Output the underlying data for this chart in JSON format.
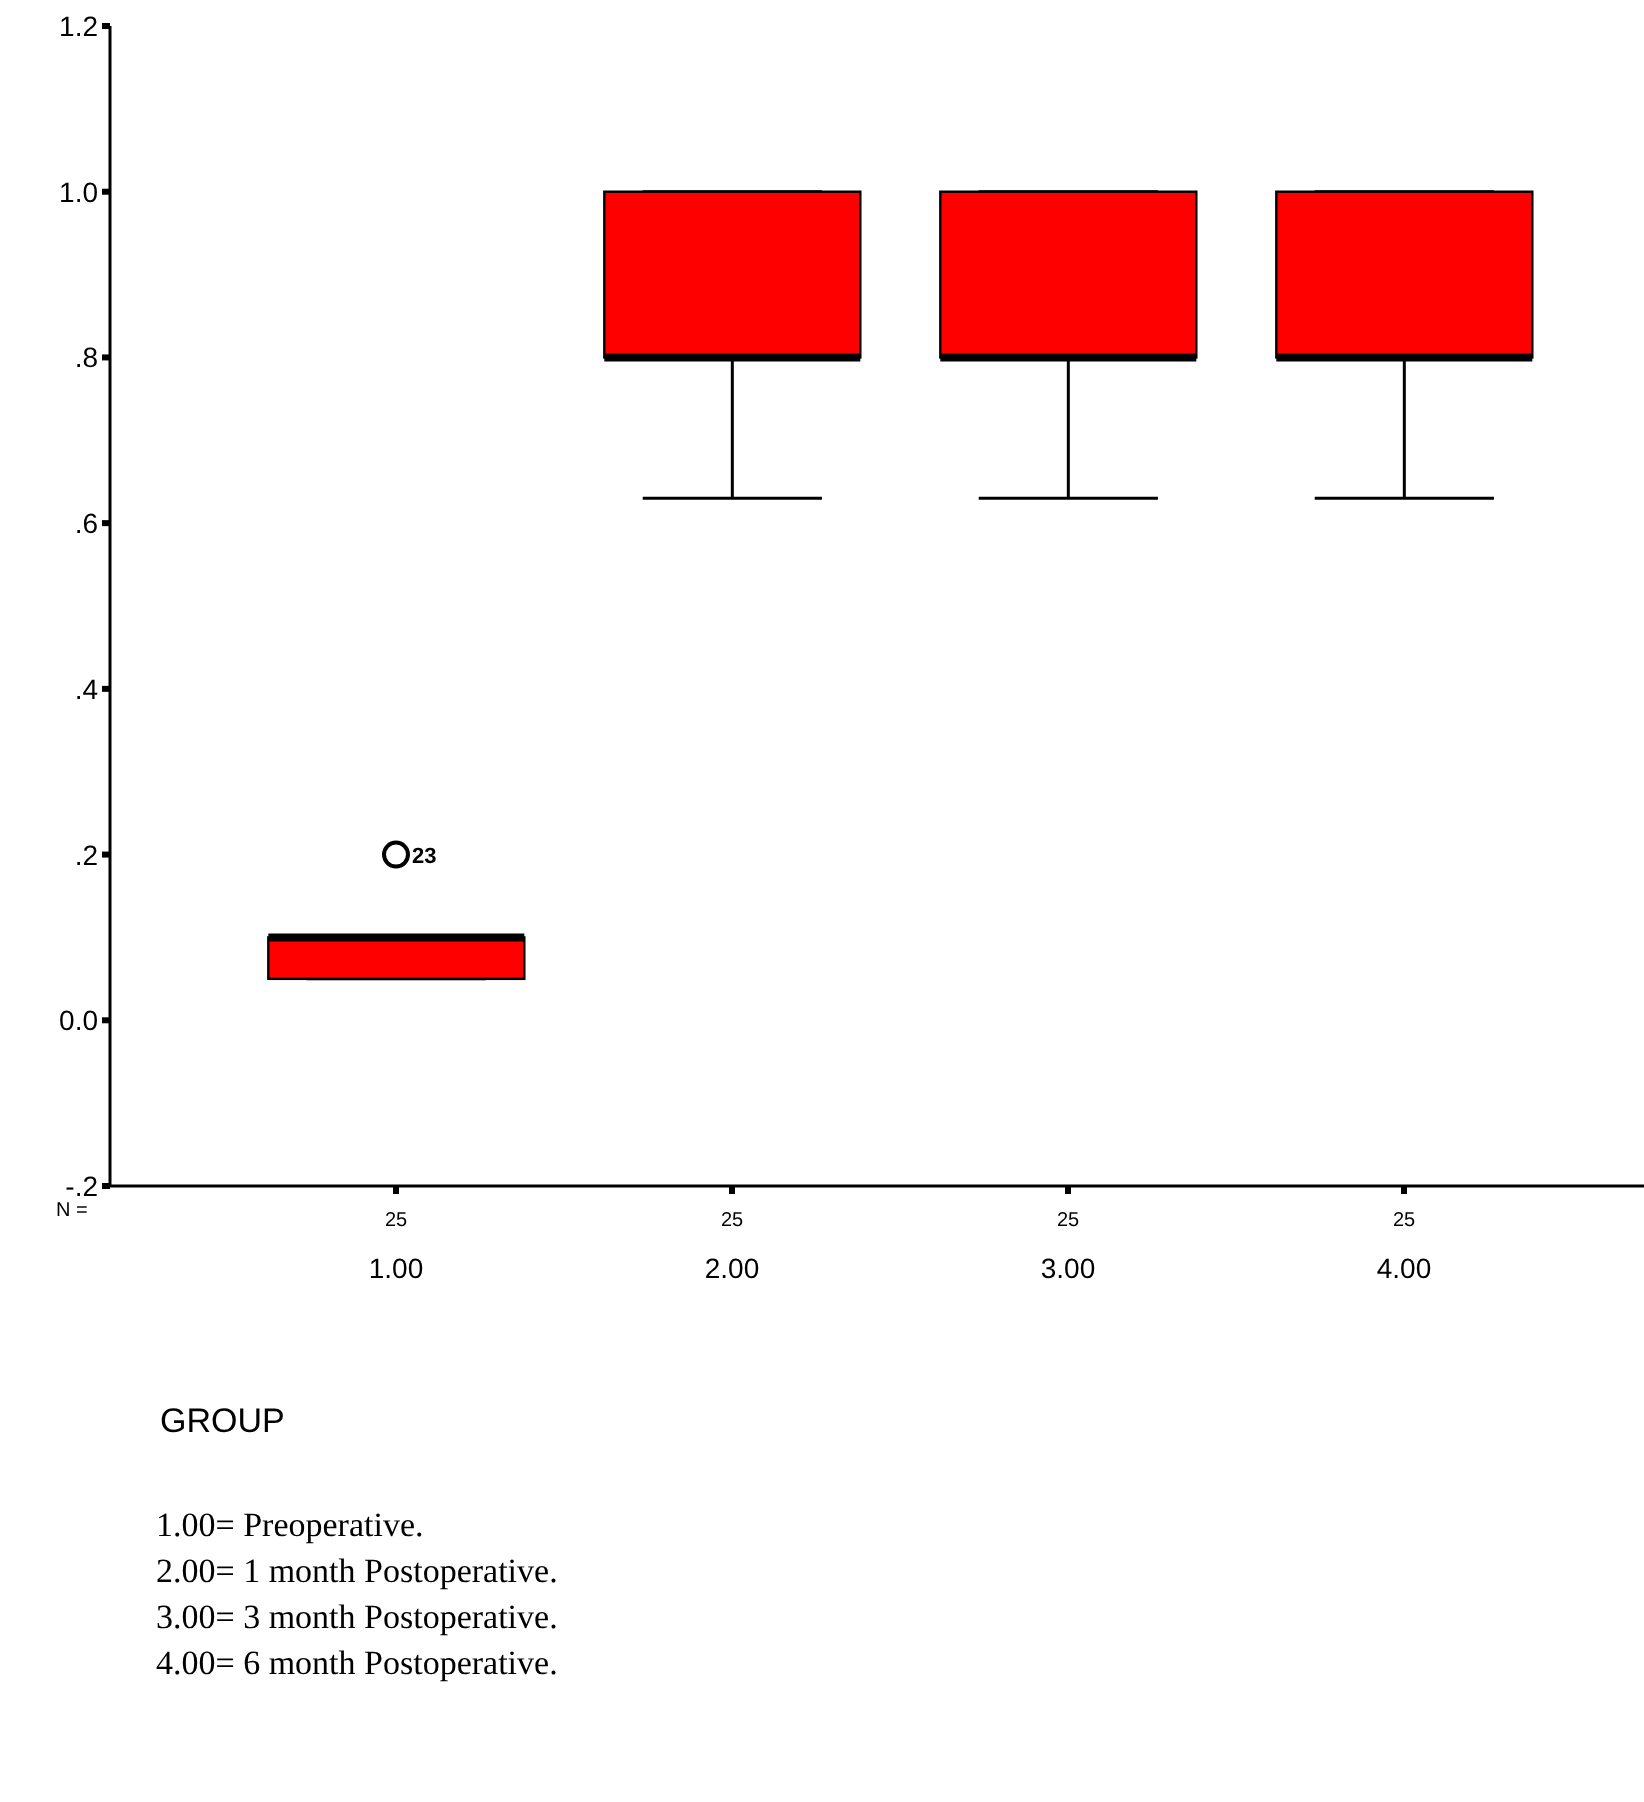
{
  "chart_data": {
    "type": "box",
    "xlabel": "GROUP",
    "categories": [
      "1.00",
      "2.00",
      "3.00",
      "4.00"
    ],
    "boxes": [
      {
        "low": 0.05,
        "q1": 0.05,
        "median": 0.1,
        "q3": 0.1,
        "high": 0.1,
        "outliers": [
          0.2
        ]
      },
      {
        "low": 0.63,
        "q1": 0.8,
        "median": 0.8,
        "q3": 1.0,
        "high": 1.0
      },
      {
        "low": 0.63,
        "q1": 0.8,
        "median": 0.8,
        "q3": 1.0,
        "high": 1.0
      },
      {
        "low": 0.63,
        "q1": 0.8,
        "median": 0.8,
        "q3": 1.0,
        "high": 1.0
      }
    ],
    "color": "#ff0000",
    "ylim": [
      -0.2,
      1.2
    ],
    "yticks": [
      {
        "value": -0.2,
        "label": "-.2"
      },
      {
        "value": 0,
        "label": "0.0"
      },
      {
        "value": 0.2,
        "label": ".2"
      },
      {
        "value": 0.4,
        "label": ".4"
      },
      {
        "value": 0.6,
        "label": ".6"
      },
      {
        "value": 0.8,
        "label": ".8"
      },
      {
        "value": 1.0,
        "label": "1.0"
      },
      {
        "value": 1.2,
        "label": "1.2"
      }
    ],
    "grid": false,
    "annotations": [
      "N =",
      "25",
      "25",
      "25",
      "25",
      "23",
      "1.00= Preoperative.",
      "2.00= 1 month Postoperative.",
      "3.00= 3 month Postoperative.",
      "4.00= 6 month Postoperative."
    ]
  }
}
